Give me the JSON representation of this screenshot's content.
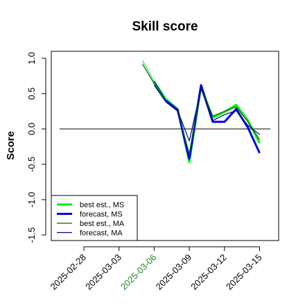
{
  "chart_data": {
    "type": "line",
    "title": "Skill score",
    "ylabel": "Score",
    "xlabel": "",
    "ylim": [
      -1.5,
      1.0
    ],
    "yticks": [
      1.0,
      0.5,
      0.0,
      -0.5,
      -1.0,
      -1.5
    ],
    "ytick_labels": [
      "1.0",
      "0.5",
      "0.0",
      "-0.5",
      "-1.0",
      "-1.5"
    ],
    "xtick_labels": [
      "2025-02-28",
      "2025-03-03",
      "2025-03-06",
      "2025-03-09",
      "2025-03-12",
      "2025-03-15"
    ],
    "xtick_highlight_index": 2,
    "xtick_highlight_color": "#228B22",
    "reference_line": 0.0,
    "grid": false,
    "legend_position": "bottom-left",
    "x": [
      "2025-03-05",
      "2025-03-06",
      "2025-03-07",
      "2025-03-08",
      "2025-03-09",
      "2025-03-10",
      "2025-03-11",
      "2025-03-12",
      "2025-03-13",
      "2025-03-14",
      "2025-03-15"
    ],
    "series": [
      {
        "name": "best est., MS",
        "color": "#00ee00",
        "width": 3,
        "values": [
          0.97,
          0.67,
          0.42,
          0.28,
          -0.47,
          0.6,
          0.16,
          0.24,
          0.34,
          0.12,
          -0.2
        ]
      },
      {
        "name": "forecast, MS",
        "color": "#0000ee",
        "width": 3,
        "values": [
          null,
          0.68,
          0.4,
          0.27,
          -0.42,
          0.62,
          0.1,
          0.1,
          0.28,
          0.02,
          -0.34
        ]
      },
      {
        "name": "best est., MA",
        "color": "#006400",
        "width": 1.2,
        "values": [
          0.92,
          0.64,
          0.38,
          0.25,
          -0.35,
          0.58,
          0.18,
          0.25,
          0.31,
          0.1,
          -0.15
        ]
      },
      {
        "name": "forecast, MA",
        "color": "#00008b",
        "width": 1.2,
        "values": [
          null,
          0.62,
          0.38,
          0.26,
          -0.17,
          0.57,
          0.12,
          0.2,
          0.26,
          0.05,
          -0.08
        ]
      }
    ]
  }
}
